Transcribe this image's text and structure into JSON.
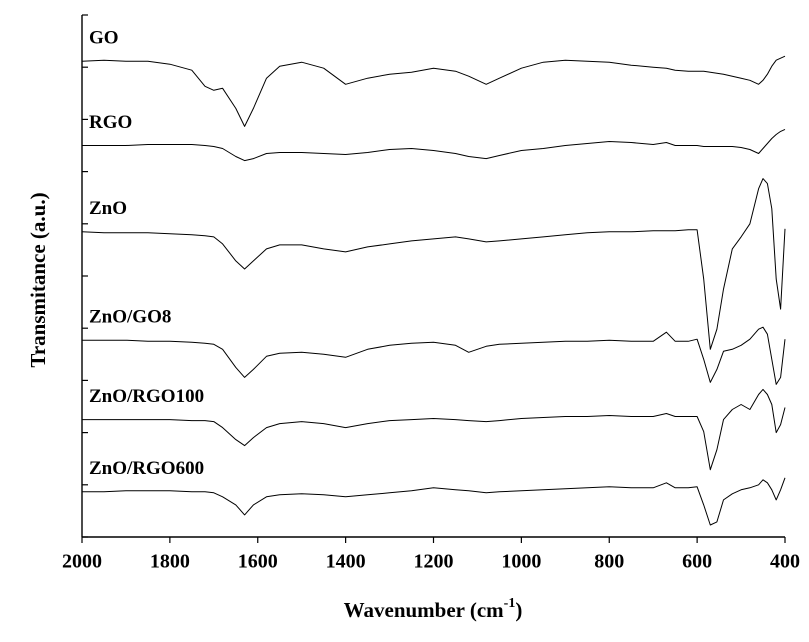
{
  "chart_data": {
    "type": "line",
    "x_label_parts": [
      "Wavenumber (cm",
      "-1",
      ")"
    ],
    "y_label": "Transmitance (a.u.)",
    "xlim": [
      2000,
      400
    ],
    "xticks": [
      2000,
      1800,
      1600,
      1400,
      1200,
      1000,
      800,
      600,
      400
    ],
    "ylim": [
      0,
      520
    ],
    "yticks": [
      0,
      52,
      104,
      156,
      208,
      260,
      312,
      364,
      416,
      468,
      520
    ],
    "y_tick_labels": false,
    "x": [
      2000,
      1950,
      1900,
      1850,
      1800,
      1750,
      1720,
      1700,
      1680,
      1650,
      1630,
      1610,
      1580,
      1550,
      1500,
      1450,
      1400,
      1350,
      1300,
      1250,
      1200,
      1150,
      1120,
      1080,
      1050,
      1000,
      950,
      900,
      850,
      800,
      750,
      700,
      670,
      650,
      620,
      600,
      585,
      570,
      555,
      540,
      520,
      500,
      480,
      460,
      450,
      440,
      430,
      420,
      410,
      400
    ],
    "series": [
      {
        "name": "GO",
        "color": "#000000",
        "values": [
          474,
          475,
          474,
          474,
          471,
          465,
          449,
          445,
          447,
          427,
          409,
          427,
          457,
          469,
          473,
          467,
          451,
          457,
          461,
          463,
          467,
          464,
          459,
          451,
          457,
          467,
          473,
          475,
          474,
          473,
          470,
          468,
          467,
          465,
          464,
          464,
          464,
          463,
          462,
          461,
          459,
          457,
          455,
          451,
          455,
          461,
          469,
          475,
          477,
          479
        ]
      },
      {
        "name": "RGO",
        "color": "#000000",
        "values": [
          390,
          390,
          390,
          391,
          391,
          391,
          390,
          389,
          387,
          379,
          375,
          377,
          382,
          383,
          383,
          382,
          381,
          383,
          386,
          387,
          385,
          382,
          379,
          377,
          380,
          385,
          387,
          390,
          392,
          394,
          393,
          391,
          393,
          390,
          390,
          390,
          389,
          389,
          389,
          389,
          389,
          388,
          386,
          382,
          387,
          392,
          397,
          401,
          404,
          406
        ]
      },
      {
        "name": "ZnO",
        "color": "#000000",
        "values": [
          304,
          303,
          303,
          303,
          302,
          301,
          300,
          299,
          292,
          275,
          267,
          275,
          287,
          291,
          291,
          287,
          284,
          289,
          292,
          295,
          297,
          299,
          297,
          294,
          295,
          297,
          299,
          301,
          303,
          304,
          304,
          305,
          305,
          305,
          306,
          306,
          257,
          187,
          207,
          247,
          287,
          299,
          312,
          347,
          357,
          352,
          327,
          257,
          227,
          307
        ]
      },
      {
        "name": "ZnO/GO8",
        "color": "#000000",
        "values": [
          196,
          196,
          196,
          195,
          195,
          194,
          193,
          192,
          187,
          169,
          159,
          167,
          180,
          183,
          184,
          182,
          179,
          187,
          191,
          193,
          194,
          191,
          184,
          190,
          192,
          193,
          194,
          195,
          195,
          196,
          195,
          195,
          204,
          195,
          195,
          197,
          177,
          154,
          167,
          185,
          187,
          191,
          197,
          207,
          209,
          202,
          177,
          152,
          159,
          197
        ]
      },
      {
        "name": "ZnO/RGO100",
        "color": "#000000",
        "values": [
          117,
          117,
          117,
          117,
          117,
          116,
          116,
          115,
          109,
          97,
          91,
          99,
          109,
          113,
          115,
          113,
          109,
          113,
          116,
          117,
          118,
          117,
          116,
          115,
          116,
          118,
          119,
          120,
          120,
          121,
          120,
          120,
          123,
          120,
          120,
          120,
          105,
          67,
          87,
          117,
          127,
          132,
          127,
          142,
          147,
          142,
          132,
          104,
          112,
          129
        ]
      },
      {
        "name": "ZnO/RGO600",
        "color": "#000000",
        "values": [
          45,
          45,
          46,
          46,
          46,
          45,
          45,
          44,
          40,
          32,
          22,
          32,
          40,
          42,
          43,
          42,
          40,
          42,
          44,
          46,
          49,
          47,
          46,
          44,
          45,
          46,
          47,
          48,
          49,
          50,
          49,
          49,
          54,
          49,
          49,
          50,
          32,
          12,
          15,
          37,
          43,
          47,
          49,
          52,
          57,
          54,
          47,
          37,
          47,
          59
        ]
      }
    ]
  }
}
